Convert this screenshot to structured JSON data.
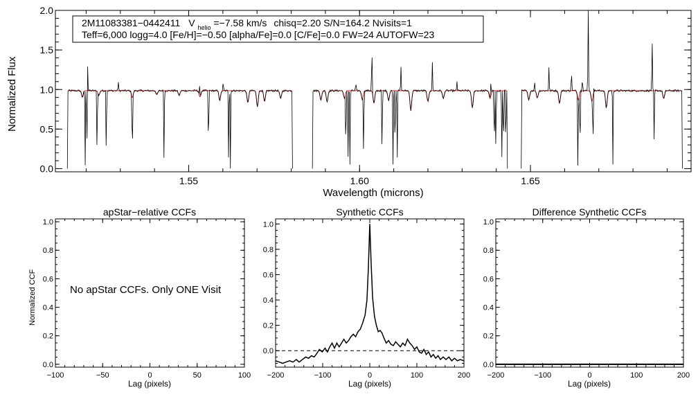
{
  "chart_data": [
    {
      "type": "line",
      "panel": "spectrum",
      "xlabel": "Wavelength (microns)",
      "ylabel": "Normalized Flux",
      "xlim": [
        1.511,
        1.697
      ],
      "ylim": [
        -0.04,
        2.0
      ],
      "xticks": [
        1.55,
        1.6,
        1.65
      ],
      "xtick_labels": [
        "1.55",
        "1.60",
        "1.65"
      ],
      "yticks": [
        0.0,
        0.5,
        1.0,
        1.5,
        2.0
      ],
      "ytick_labels": [
        "0.0",
        "0.5",
        "1.0",
        "1.5",
        "2.0"
      ],
      "legend_box": {
        "star": "2M11083381−0442411",
        "v_symbol": "V",
        "v_subscript": "helio",
        "v_value": "=−7.58 km/s",
        "rest1": "chisq=2.20  S/N=164.2  Nvisits=1",
        "line2": "Teff=6,000 logg=4.0 [Fe/H]=−0.50 [alpha/Fe]=0.0 [C/Fe]=0.0 FW=24 AUTOFW=23"
      },
      "detector_ranges": [
        [
          1.5145,
          1.5805
        ],
        [
          1.5862,
          1.6434
        ],
        [
          1.6473,
          1.6945
        ]
      ],
      "continuum": 0.985,
      "observed_absorption": [
        {
          "x": 1.5189,
          "depth": 0.08
        },
        {
          "x": 1.5237,
          "depth": 0.06
        },
        {
          "x": 1.5335,
          "depth": 0.09
        },
        {
          "x": 1.5407,
          "depth": 0.05
        },
        {
          "x": 1.5472,
          "depth": 0.06
        },
        {
          "x": 1.5533,
          "depth": 0.08
        },
        {
          "x": 1.5591,
          "depth": 0.12
        },
        {
          "x": 1.5673,
          "depth": 0.15
        },
        {
          "x": 1.5701,
          "depth": 0.2
        },
        {
          "x": 1.5722,
          "depth": 0.14
        },
        {
          "x": 1.5769,
          "depth": 0.1
        },
        {
          "x": 1.5887,
          "depth": 0.12
        },
        {
          "x": 1.5905,
          "depth": 0.14
        },
        {
          "x": 1.5956,
          "depth": 0.1
        },
        {
          "x": 1.6008,
          "depth": 0.11
        },
        {
          "x": 1.6042,
          "depth": 0.16
        },
        {
          "x": 1.6085,
          "depth": 0.12
        },
        {
          "x": 1.615,
          "depth": 0.25
        },
        {
          "x": 1.62,
          "depth": 0.14
        },
        {
          "x": 1.6245,
          "depth": 0.1
        },
        {
          "x": 1.633,
          "depth": 0.22
        },
        {
          "x": 1.6382,
          "depth": 0.1
        },
        {
          "x": 1.6495,
          "depth": 0.12
        },
        {
          "x": 1.652,
          "depth": 0.09
        },
        {
          "x": 1.6585,
          "depth": 0.16
        },
        {
          "x": 1.664,
          "depth": 0.12
        },
        {
          "x": 1.668,
          "depth": 0.14
        },
        {
          "x": 1.6722,
          "depth": 0.22
        },
        {
          "x": 1.689,
          "depth": 0.1
        }
      ],
      "observed_emission": [
        {
          "x": 1.5204,
          "height": 0.35
        },
        {
          "x": 1.5294,
          "height": 0.12
        },
        {
          "x": 1.5532,
          "height": 0.12
        },
        {
          "x": 1.5601,
          "height": 0.1
        },
        {
          "x": 1.5989,
          "height": 0.1
        },
        {
          "x": 1.6036,
          "height": 0.55
        },
        {
          "x": 1.6121,
          "height": 0.3
        },
        {
          "x": 1.6213,
          "height": 0.35
        },
        {
          "x": 1.6285,
          "height": 0.12
        },
        {
          "x": 1.6384,
          "height": 0.17
        },
        {
          "x": 1.6512,
          "height": 0.12
        },
        {
          "x": 1.6554,
          "height": 0.3
        },
        {
          "x": 1.662,
          "height": 0.25
        },
        {
          "x": 1.6652,
          "height": 0.18
        },
        {
          "x": 1.6669,
          "height": 1.05
        },
        {
          "x": 1.6684,
          "height": 0.22
        },
        {
          "x": 1.6856,
          "height": 0.65
        }
      ],
      "observed_dropouts": [
        {
          "x": 1.5197,
          "depth": 0.98
        },
        {
          "x": 1.5202,
          "depth": 0.98
        },
        {
          "x": 1.5232,
          "depth": 0.98
        },
        {
          "x": 1.5259,
          "depth": 0.98
        },
        {
          "x": 1.5335,
          "depth": 0.98
        },
        {
          "x": 1.5428,
          "depth": 0.98
        },
        {
          "x": 1.5558,
          "depth": 0.98
        },
        {
          "x": 1.5617,
          "depth": 0.98
        },
        {
          "x": 1.5622,
          "depth": 0.98
        },
        {
          "x": 1.596,
          "depth": 0.98
        },
        {
          "x": 1.5966,
          "depth": 0.98
        },
        {
          "x": 1.5972,
          "depth": 0.98
        },
        {
          "x": 1.6012,
          "depth": 0.98
        },
        {
          "x": 1.6066,
          "depth": 0.98
        },
        {
          "x": 1.6098,
          "depth": 0.98
        },
        {
          "x": 1.6104,
          "depth": 0.98
        },
        {
          "x": 1.611,
          "depth": 0.98
        },
        {
          "x": 1.6394,
          "depth": 0.98
        },
        {
          "x": 1.6399,
          "depth": 0.98
        },
        {
          "x": 1.6416,
          "depth": 0.98
        },
        {
          "x": 1.6421,
          "depth": 0.98
        },
        {
          "x": 1.6428,
          "depth": 0.98
        },
        {
          "x": 1.6639,
          "depth": 0.98
        },
        {
          "x": 1.6645,
          "depth": 0.98
        },
        {
          "x": 1.6683,
          "depth": 0.98
        },
        {
          "x": 1.6741,
          "depth": 0.98
        },
        {
          "x": 1.6862,
          "depth": 0.65
        }
      ],
      "series": [
        {
          "name": "observed spectrum",
          "color": "#000000"
        },
        {
          "name": "model spectrum",
          "color": "#dd0000"
        }
      ]
    },
    {
      "type": "line",
      "panel": "apstar",
      "title": "apStar−relative CCFs",
      "xlabel": "Lag (pixels)",
      "ylabel": "Normalized CCF",
      "xlim": [
        -100,
        100
      ],
      "ylim": [
        -0.02,
        1.02
      ],
      "xticks": [
        -100,
        -50,
        0,
        50,
        100
      ],
      "xtick_labels": [
        "−100",
        "−50",
        "0",
        "50",
        "100"
      ],
      "yticks": [
        0.0,
        0.2,
        0.4,
        0.6,
        0.8,
        1.0
      ],
      "ytick_labels": [
        "0.0",
        "0.2",
        "0.4",
        "0.6",
        "0.8",
        "1.0"
      ],
      "message": "No apStar CCFs.  Only ONE Visit",
      "series": []
    },
    {
      "type": "line",
      "panel": "synthetic",
      "title": "Synthetic CCFs",
      "xlabel": "Lag (pixels)",
      "xlim": [
        -200,
        200
      ],
      "ylim": [
        -0.13,
        1.04
      ],
      "xticks": [
        -200,
        -100,
        0,
        100,
        200
      ],
      "xtick_labels": [
        "−200",
        "−100",
        "0",
        "100",
        "200"
      ],
      "yticks": [
        0.0,
        0.2,
        0.4,
        0.6,
        0.8,
        1.0
      ],
      "ytick_labels": [
        "0.0",
        "0.2",
        "0.4",
        "0.6",
        "0.8",
        "1.0"
      ],
      "zero_line": 0.0,
      "series": [
        {
          "name": "CCF",
          "color": "#000000",
          "points": [
            [
              -200,
              -0.08
            ],
            [
              -192,
              -0.09
            ],
            [
              -185,
              -0.1
            ],
            [
              -178,
              -0.09
            ],
            [
              -170,
              -0.08
            ],
            [
              -163,
              -0.09
            ],
            [
              -156,
              -0.07
            ],
            [
              -150,
              -0.09
            ],
            [
              -143,
              -0.07
            ],
            [
              -136,
              -0.05
            ],
            [
              -130,
              -0.06
            ],
            [
              -124,
              -0.04
            ],
            [
              -118,
              -0.05
            ],
            [
              -112,
              -0.02
            ],
            [
              -107,
              0.01
            ],
            [
              -101,
              -0.01
            ],
            [
              -95,
              0.02
            ],
            [
              -90,
              -0.01
            ],
            [
              -85,
              0.03
            ],
            [
              -80,
              0.06
            ],
            [
              -75,
              0.02
            ],
            [
              -70,
              0.06
            ],
            [
              -65,
              0.03
            ],
            [
              -60,
              0.06
            ],
            [
              -55,
              0.09
            ],
            [
              -50,
              0.06
            ],
            [
              -45,
              0.08
            ],
            [
              -40,
              0.11
            ],
            [
              -35,
              0.13
            ],
            [
              -30,
              0.11
            ],
            [
              -25,
              0.15
            ],
            [
              -20,
              0.17
            ],
            [
              -15,
              0.22
            ],
            [
              -10,
              0.28
            ],
            [
              -6,
              0.4
            ],
            [
              -3,
              0.65
            ],
            [
              0,
              1.0
            ],
            [
              3,
              0.68
            ],
            [
              6,
              0.42
            ],
            [
              10,
              0.27
            ],
            [
              14,
              0.2
            ],
            [
              18,
              0.15
            ],
            [
              22,
              0.16
            ],
            [
              26,
              0.14
            ],
            [
              30,
              0.1
            ],
            [
              35,
              0.06
            ],
            [
              40,
              0.08
            ],
            [
              45,
              0.05
            ],
            [
              50,
              0.04
            ],
            [
              55,
              0.07
            ],
            [
              60,
              0.05
            ],
            [
              65,
              0.03
            ],
            [
              70,
              0.06
            ],
            [
              75,
              0.04
            ],
            [
              80,
              0.09
            ],
            [
              85,
              0.06
            ],
            [
              90,
              0.04
            ],
            [
              95,
              0.01
            ],
            [
              100,
              0.03
            ],
            [
              105,
              -0.01
            ],
            [
              110,
              -0.02
            ],
            [
              115,
              0.01
            ],
            [
              120,
              -0.03
            ],
            [
              125,
              -0.01
            ],
            [
              130,
              -0.05
            ],
            [
              135,
              -0.03
            ],
            [
              140,
              -0.06
            ],
            [
              145,
              -0.04
            ],
            [
              150,
              -0.07
            ],
            [
              156,
              -0.05
            ],
            [
              162,
              -0.07
            ],
            [
              168,
              -0.05
            ],
            [
              174,
              -0.08
            ],
            [
              180,
              -0.06
            ],
            [
              186,
              -0.08
            ],
            [
              192,
              -0.07
            ],
            [
              200,
              -0.08
            ]
          ]
        }
      ]
    },
    {
      "type": "line",
      "panel": "difference",
      "title": "Difference Synthetic CCFs",
      "xlabel": "Lag (pixels)",
      "xlim": [
        -200,
        200
      ],
      "ylim": [
        -0.02,
        1.02
      ],
      "xticks": [
        -200,
        -100,
        0,
        100,
        200
      ],
      "xtick_labels": [
        "−200",
        "−100",
        "0",
        "100",
        "200"
      ],
      "yticks": [
        0.0,
        0.2,
        0.4,
        0.6,
        0.8,
        1.0
      ],
      "ytick_labels": [
        "0.0",
        "0.2",
        "0.4",
        "0.6",
        "0.8",
        "1.0"
      ],
      "series": [
        {
          "name": "difference CCF",
          "color": "#000000",
          "points": [
            [
              -200,
              0.0
            ],
            [
              200,
              0.0
            ]
          ]
        }
      ]
    }
  ]
}
